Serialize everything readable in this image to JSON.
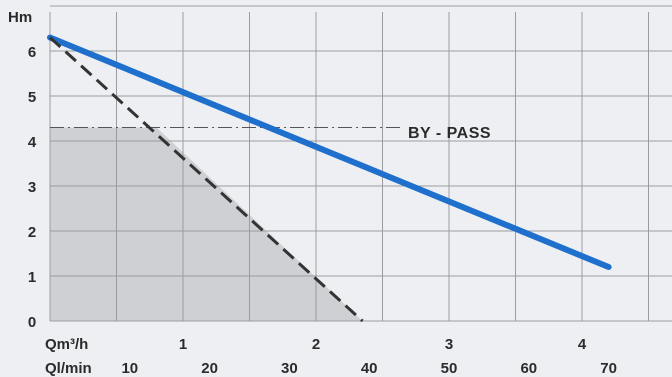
{
  "chart_data": {
    "type": "line",
    "title": "",
    "ylabel": "Hm",
    "ylim": [
      0,
      7
    ],
    "yticks": [
      "0",
      "1",
      "2",
      "3",
      "4",
      "5",
      "6"
    ],
    "x_primary": {
      "label": "Qm³/h",
      "ticks": [
        {
          "value": 1,
          "label": "1"
        },
        {
          "value": 2,
          "label": "2"
        },
        {
          "value": 3,
          "label": "3"
        },
        {
          "value": 4,
          "label": "4"
        }
      ]
    },
    "x_secondary": {
      "label": "Ql/min",
      "ticks": [
        {
          "value": 0.6,
          "label": "10"
        },
        {
          "value": 1.2,
          "label": "20"
        },
        {
          "value": 1.8,
          "label": "30"
        },
        {
          "value": 2.4,
          "label": "40"
        },
        {
          "value": 3.0,
          "label": "50"
        },
        {
          "value": 3.6,
          "label": "60"
        },
        {
          "value": 4.2,
          "label": "70"
        }
      ]
    },
    "xlim": [
      0,
      4.75
    ],
    "grid": true,
    "series": [
      {
        "style": "solid",
        "color": "#1f6fcc",
        "x": [
          0,
          4.2
        ],
        "y": [
          6.3,
          1.2
        ]
      },
      {
        "style": "dashed",
        "color": "#333333",
        "x": [
          0,
          2.35
        ],
        "y": [
          6.3,
          0
        ]
      }
    ],
    "shaded_region": {
      "color": "#cfd0d3",
      "x": [
        0,
        0,
        0.8,
        2.35
      ],
      "y": [
        0,
        4.3,
        4.3,
        0
      ]
    },
    "annotations": [
      {
        "text": "BY - PASS",
        "y": 4.3
      }
    ]
  }
}
